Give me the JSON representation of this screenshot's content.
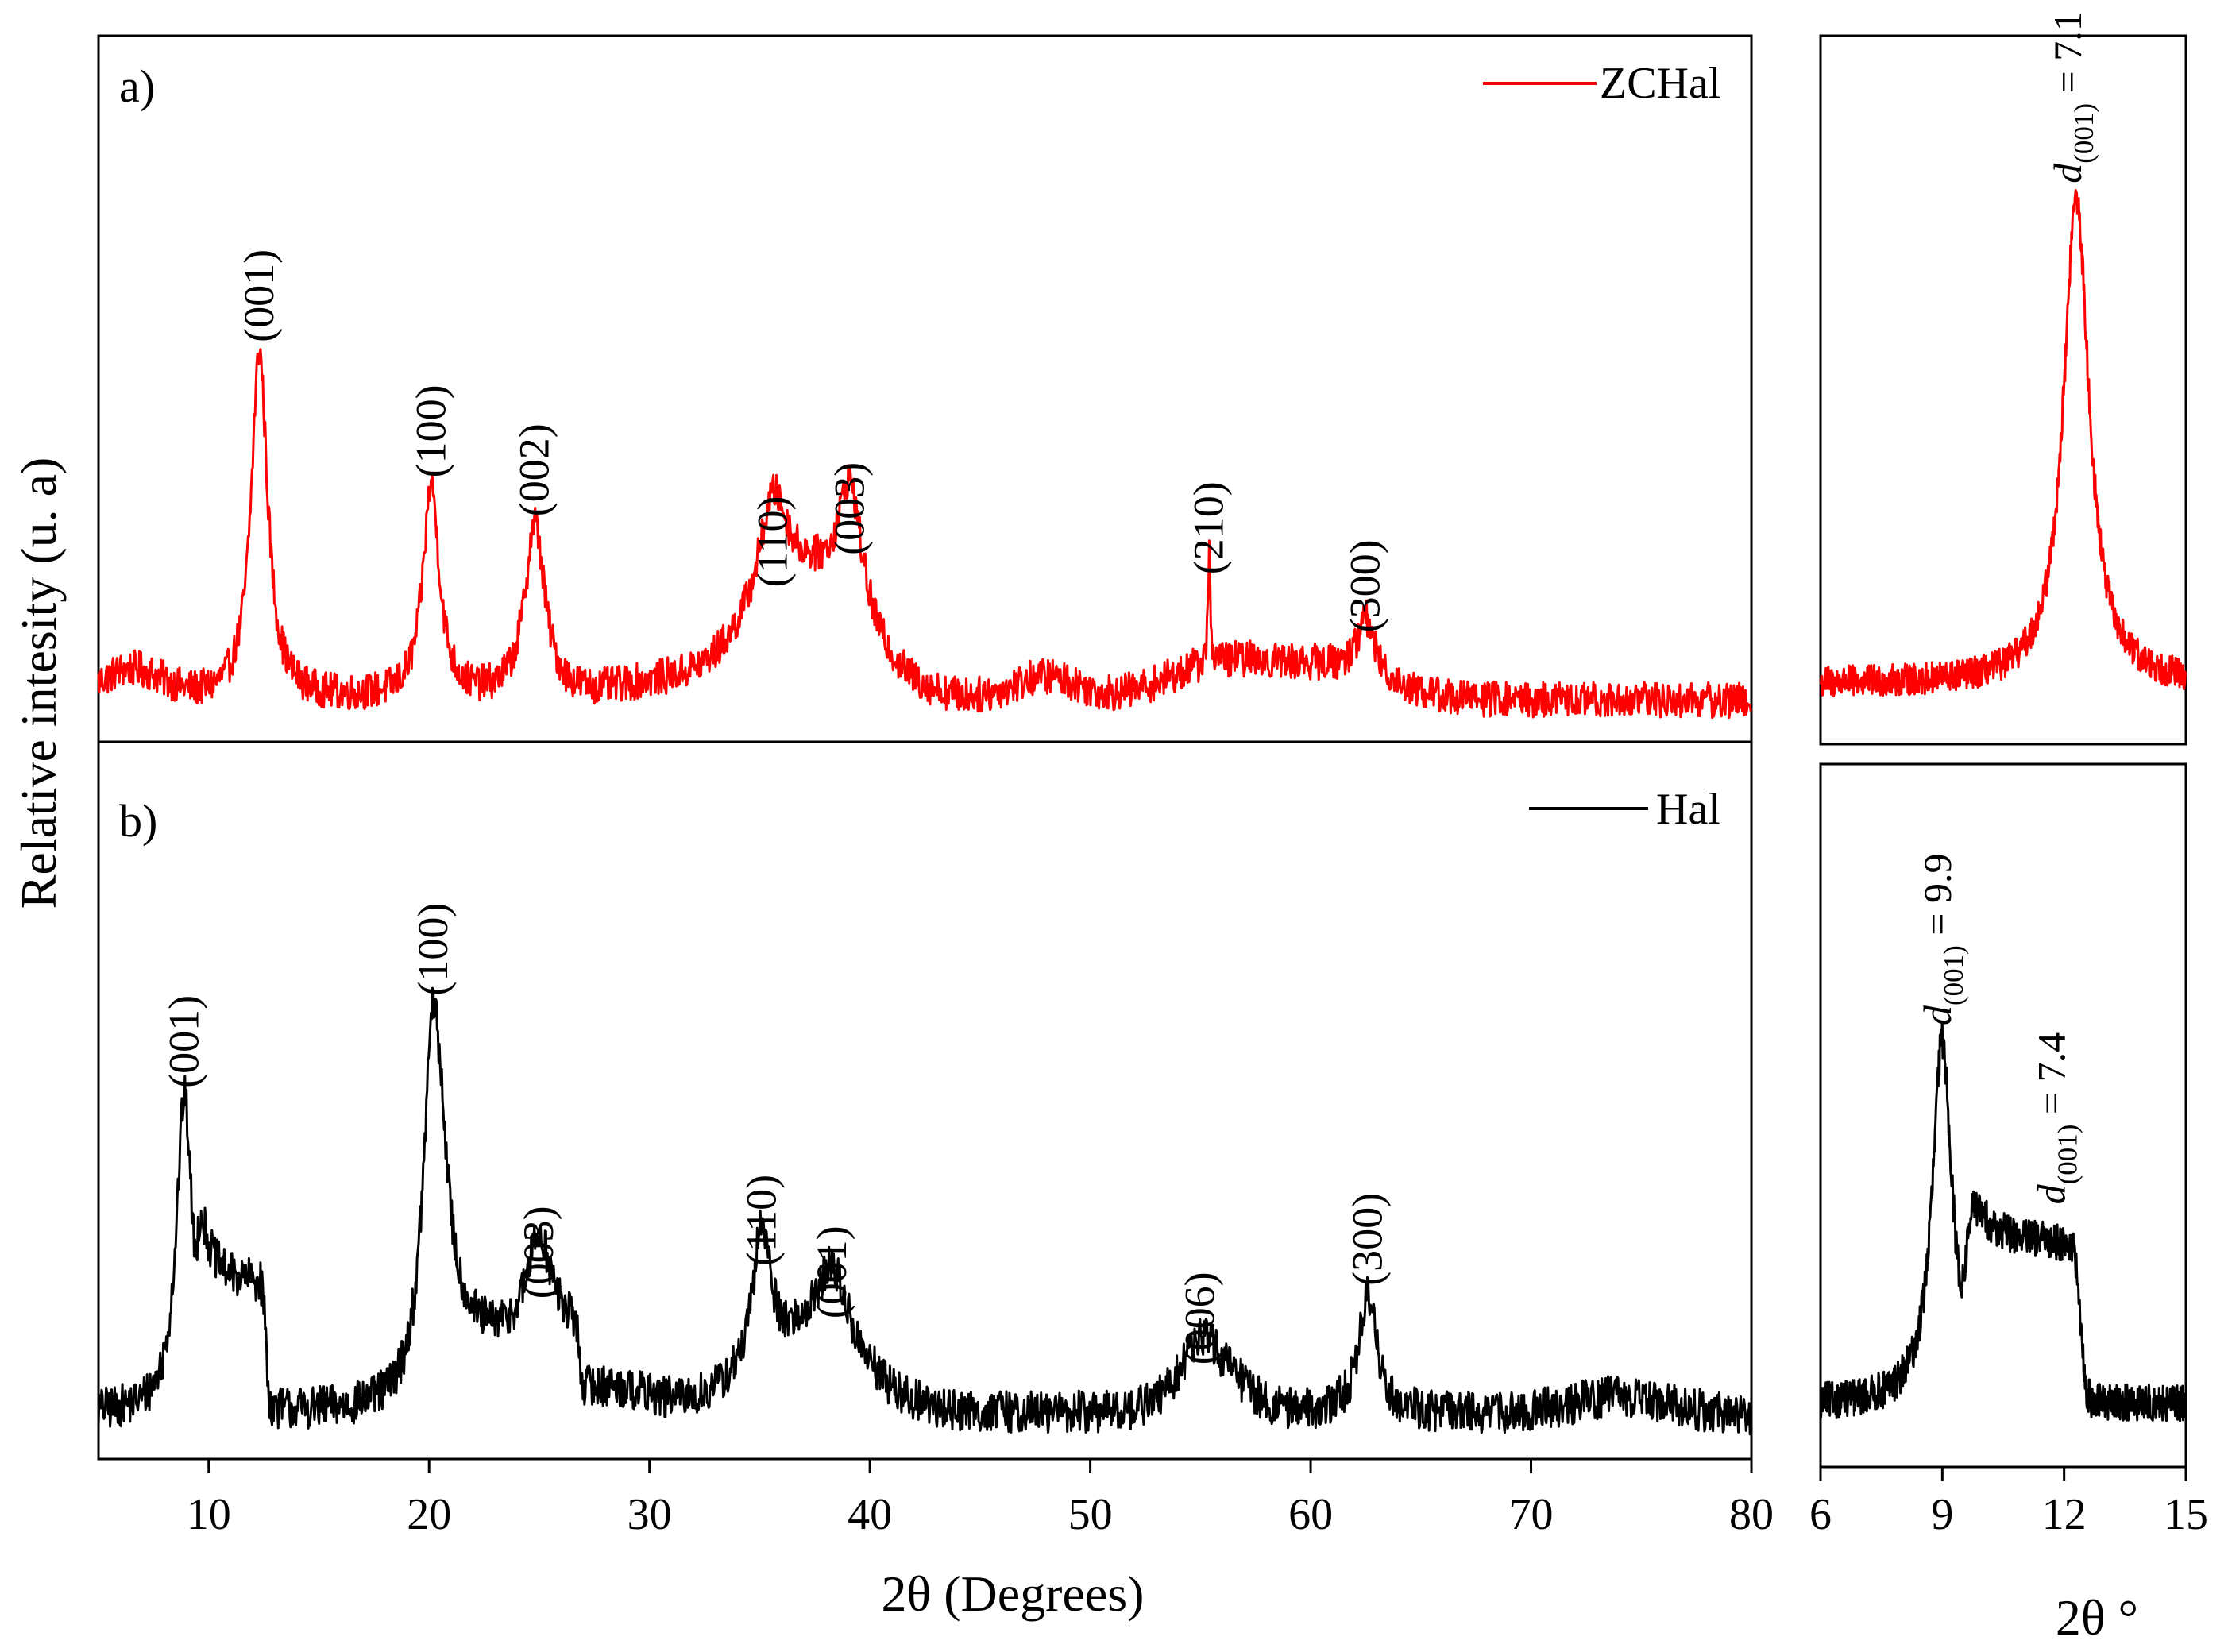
{
  "figure": {
    "y_label": "Relative intesity (u. a)",
    "x_label_main": "2θ (Degrees)",
    "x_label_inset": "2θ °"
  },
  "chart_data": [
    {
      "id": "a",
      "type": "line",
      "panel_label": "a)",
      "legend": "ZCHal",
      "color": "#ff0000",
      "xlim": [
        5,
        80
      ],
      "ylim": [
        0,
        100
      ],
      "x_ticks": [
        10,
        20,
        30,
        40,
        50,
        60,
        70,
        80
      ],
      "baseline": 5,
      "noise": 2.8,
      "humps": [
        {
          "center": 6.5,
          "height": 4.5,
          "width": 2.0
        },
        {
          "center": 30.5,
          "height": 2.2,
          "width": 3.0
        },
        {
          "center": 37.0,
          "height": 18,
          "width": 3.5
        },
        {
          "center": 48.0,
          "height": 3.5,
          "width": 2.0
        },
        {
          "center": 56.0,
          "height": 5.5,
          "width": 3.5
        },
        {
          "center": 61.0,
          "height": 4.5,
          "width": 3.5
        }
      ],
      "peaks": [
        {
          "label": "(001)",
          "two_theta": 12.3,
          "intensity": 54,
          "width": 0.45
        },
        {
          "label": "(100)",
          "two_theta": 20.1,
          "intensity": 33,
          "width": 0.45
        },
        {
          "label": "(002)",
          "two_theta": 24.8,
          "intensity": 27,
          "width": 0.55
        },
        {
          "label": "(110)",
          "two_theta": 35.6,
          "intensity": 16,
          "width": 0.75
        },
        {
          "label": "(003)",
          "two_theta": 39.1,
          "intensity": 21,
          "width": 0.65
        },
        {
          "label": "(210)",
          "two_theta": 55.4,
          "intensity": 18,
          "width": 0.06
        },
        {
          "label": "(300)",
          "two_theta": 62.5,
          "intensity": 9,
          "width": 0.45
        }
      ]
    },
    {
      "id": "b",
      "type": "line",
      "panel_label": "b)",
      "legend": "Hal",
      "color": "#000000",
      "xlim": [
        5,
        80
      ],
      "ylim": [
        0,
        100
      ],
      "x_ticks": [
        10,
        20,
        30,
        40,
        50,
        60,
        70,
        80
      ],
      "x_tick_labels": [
        "10",
        "20",
        "30",
        "40",
        "50",
        "60",
        "70",
        "80"
      ],
      "baseline": 6,
      "noise": 3.2,
      "plateaus": [
        {
          "from": 9.5,
          "to": 12.6,
          "height": 19
        },
        {
          "from": 20.5,
          "to": 26.8,
          "height": 10
        }
      ],
      "humps": [
        {
          "center": 37.0,
          "height": 10,
          "width": 3.5
        },
        {
          "center": 28.5,
          "height": 3.0,
          "width": 2.5
        },
        {
          "center": 55.5,
          "height": 6.0,
          "width": 2.0
        },
        {
          "center": 74.0,
          "height": 2.5,
          "width": 3.0
        }
      ],
      "peaks": [
        {
          "label": "(001)",
          "two_theta": 8.9,
          "intensity": 48,
          "width": 0.45
        },
        {
          "label": "(100)",
          "two_theta": 20.2,
          "intensity": 62,
          "width": 0.55
        },
        {
          "label": "(003)",
          "two_theta": 25.0,
          "intensity": 16,
          "width": 0.7
        },
        {
          "label": "(110)",
          "two_theta": 35.1,
          "intensity": 21,
          "width": 0.45
        },
        {
          "label": "(001)",
          "two_theta": 38.3,
          "intensity": 13,
          "width": 0.9
        },
        {
          "label": "(006)",
          "two_theta": 55.0,
          "intensity": 6,
          "width": 0.9
        },
        {
          "label": "(300)",
          "two_theta": 62.6,
          "intensity": 18,
          "width": 0.5
        }
      ]
    },
    {
      "id": "a-inset",
      "type": "line",
      "color": "#ff0000",
      "xlim": [
        6,
        15
      ],
      "ylim": [
        0,
        100
      ],
      "baseline": 8,
      "noise": 2.5,
      "peaks": [
        {
          "two_theta": 12.3,
          "intensity": 76,
          "width": 0.38
        }
      ],
      "annotations": [
        {
          "text": "d",
          "subscript": "(001)",
          "suffix": " = 7.1",
          "two_theta": 12.1
        }
      ]
    },
    {
      "id": "b-inset",
      "type": "line",
      "color": "#000000",
      "xlim": [
        6,
        15
      ],
      "ylim": [
        0,
        100
      ],
      "x_ticks": [
        6,
        9,
        12,
        15
      ],
      "x_tick_labels": [
        "6",
        "9",
        "12",
        "15"
      ],
      "baseline": 8,
      "noise": 2.8,
      "plateaus": [
        {
          "from": 9.6,
          "to": 12.4,
          "height": 24
        }
      ],
      "peaks": [
        {
          "two_theta": 9.0,
          "intensity": 55,
          "width": 0.3
        }
      ],
      "annotations": [
        {
          "text": "d",
          "subscript": "(001)",
          "suffix": " = 9.9",
          "two_theta": 8.9
        },
        {
          "text": "d",
          "subscript": "(001)",
          "suffix": " = 7.4",
          "two_theta": 11.7
        }
      ]
    }
  ]
}
